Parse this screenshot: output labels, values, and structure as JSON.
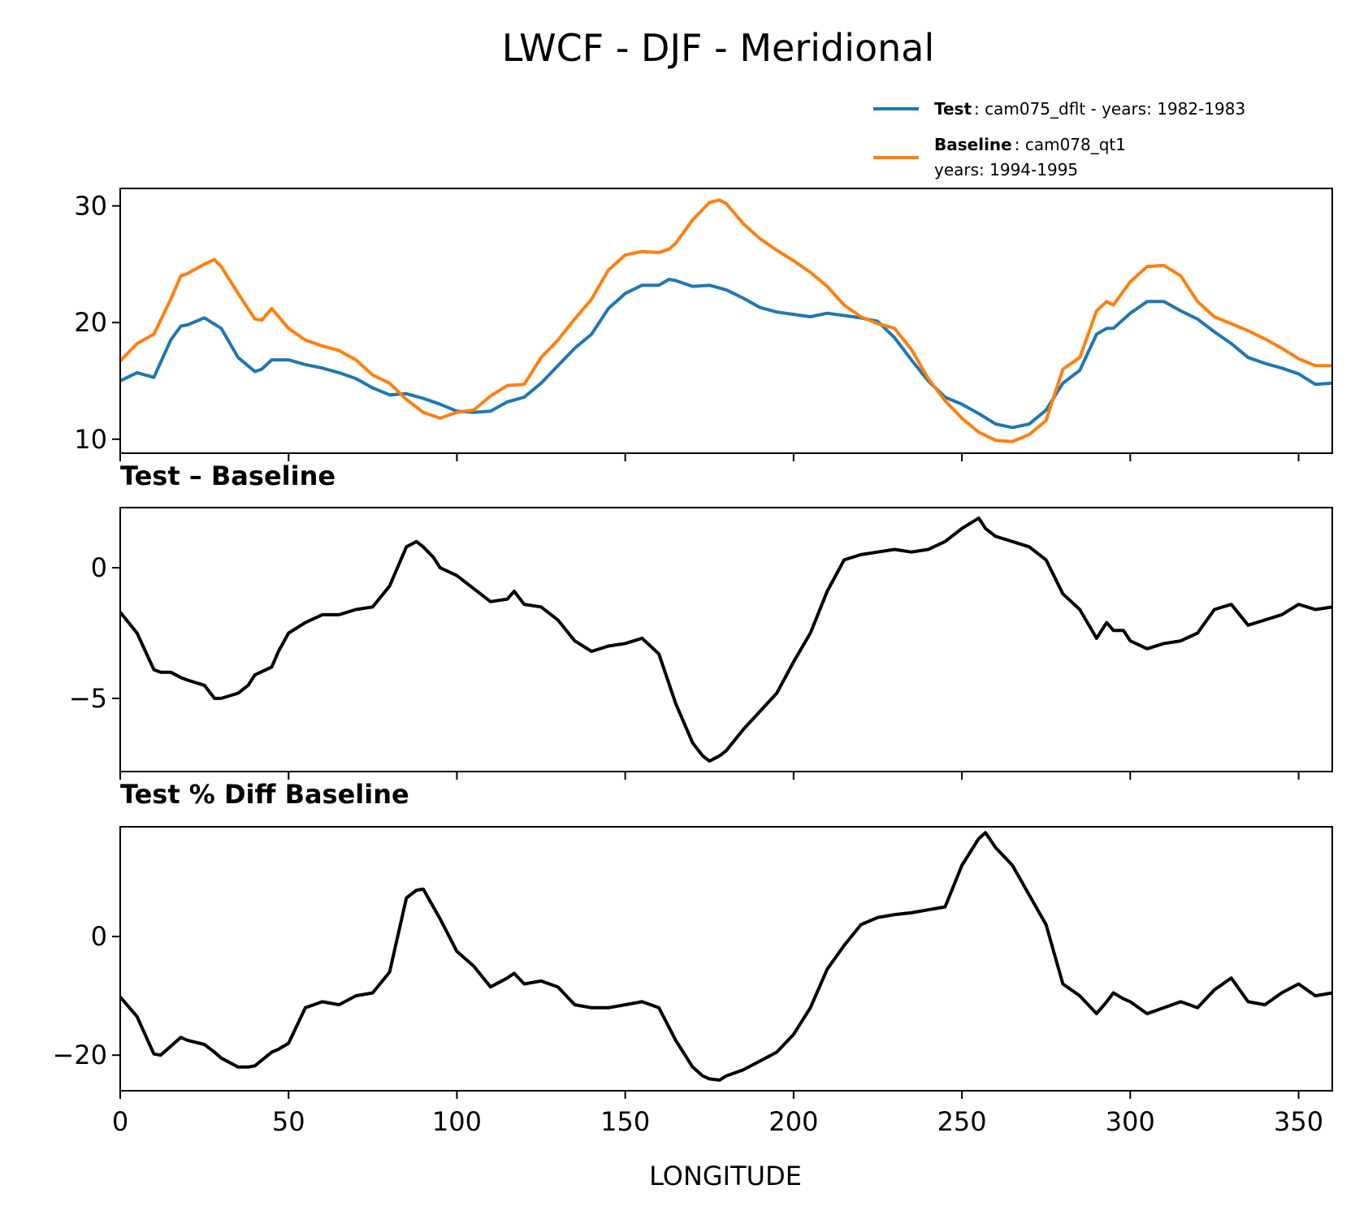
{
  "chart_data": {
    "type": "line",
    "title": "LWCF - DJF - Meridional",
    "xlabel": "LONGITUDE",
    "xlim": [
      0,
      360
    ],
    "xticks": [
      0,
      50,
      100,
      150,
      200,
      250,
      300,
      350
    ],
    "xtick_labels": [
      "0",
      "50",
      "100",
      "150",
      "200",
      "250",
      "300",
      "350"
    ],
    "colors": {
      "test": "#1f77b4",
      "baseline": "#ff7f0e",
      "diff": "#000000"
    },
    "legend": {
      "placement": "top-right",
      "test_name": "Test",
      "test_text": ": cam075_dflt - years: 1982-1983",
      "baseline_name": "Baseline",
      "baseline_text": ": cam078_qt1",
      "baseline_years": "years: 1994-1995"
    },
    "panels": [
      {
        "name": "main",
        "title": "",
        "ylim": [
          8.8,
          31.5
        ],
        "yticks": [
          10,
          20,
          30
        ],
        "ytick_labels": [
          "10",
          "20",
          "30"
        ],
        "series": [
          {
            "name": "Test",
            "color": "#1f77b4",
            "x": [
              0,
              5,
              10,
              15,
              18,
              20,
              25,
              30,
              35,
              40,
              42,
              45,
              50,
              55,
              60,
              65,
              70,
              75,
              80,
              85,
              90,
              95,
              100,
              105,
              110,
              115,
              120,
              125,
              130,
              135,
              140,
              145,
              150,
              155,
              160,
              163,
              165,
              170,
              175,
              180,
              185,
              190,
              195,
              200,
              205,
              210,
              215,
              220,
              225,
              230,
              235,
              240,
              245,
              250,
              255,
              260,
              265,
              270,
              275,
              280,
              285,
              290,
              293,
              295,
              300,
              305,
              310,
              315,
              320,
              325,
              330,
              335,
              340,
              345,
              350,
              355,
              360
            ],
            "values": [
              15.0,
              15.7,
              15.3,
              18.5,
              19.7,
              19.8,
              20.4,
              19.5,
              17.0,
              15.8,
              16.0,
              16.8,
              16.8,
              16.4,
              16.1,
              15.7,
              15.2,
              14.4,
              13.8,
              13.9,
              13.5,
              13.0,
              12.4,
              12.3,
              12.4,
              13.2,
              13.6,
              14.8,
              16.3,
              17.8,
              19.0,
              21.2,
              22.5,
              23.2,
              23.2,
              23.7,
              23.6,
              23.1,
              23.2,
              22.8,
              22.1,
              21.3,
              20.9,
              20.7,
              20.5,
              20.8,
              20.6,
              20.4,
              20.1,
              18.7,
              16.8,
              15.0,
              13.6,
              13.0,
              12.2,
              11.3,
              11.0,
              11.3,
              12.5,
              14.8,
              15.9,
              19.0,
              19.5,
              19.5,
              20.8,
              21.8,
              21.8,
              21.0,
              20.3,
              19.2,
              18.2,
              17.0,
              16.5,
              16.1,
              15.6,
              14.7,
              14.8
            ]
          },
          {
            "name": "Baseline",
            "color": "#ff7f0e",
            "x": [
              0,
              5,
              10,
              15,
              18,
              20,
              25,
              28,
              30,
              35,
              40,
              42,
              45,
              50,
              55,
              60,
              65,
              70,
              75,
              80,
              85,
              90,
              95,
              100,
              105,
              110,
              115,
              120,
              125,
              130,
              135,
              140,
              145,
              150,
              155,
              160,
              163,
              165,
              170,
              175,
              178,
              180,
              185,
              190,
              195,
              200,
              205,
              210,
              215,
              220,
              225,
              230,
              235,
              240,
              245,
              250,
              255,
              260,
              265,
              270,
              275,
              280,
              285,
              290,
              293,
              295,
              300,
              305,
              310,
              315,
              320,
              325,
              330,
              335,
              340,
              345,
              350,
              355,
              360
            ],
            "values": [
              16.7,
              18.2,
              19.0,
              22.0,
              24.0,
              24.2,
              25.0,
              25.4,
              24.8,
              22.5,
              20.3,
              20.2,
              21.2,
              19.5,
              18.5,
              18.0,
              17.6,
              16.8,
              15.5,
              14.8,
              13.4,
              12.3,
              11.8,
              12.3,
              12.5,
              13.7,
              14.6,
              14.7,
              17.0,
              18.5,
              20.3,
              22.0,
              24.5,
              25.8,
              26.1,
              26.0,
              26.3,
              26.8,
              28.8,
              30.3,
              30.5,
              30.2,
              28.5,
              27.2,
              26.2,
              25.3,
              24.3,
              23.1,
              21.5,
              20.5,
              19.9,
              19.5,
              17.7,
              15.2,
              13.3,
              11.8,
              10.6,
              9.9,
              9.8,
              10.4,
              11.6,
              16.0,
              17.0,
              21.0,
              21.8,
              21.5,
              23.5,
              24.8,
              24.9,
              24.0,
              21.8,
              20.5,
              19.9,
              19.3,
              18.6,
              17.8,
              16.9,
              16.3,
              16.3
            ]
          }
        ]
      },
      {
        "name": "diff",
        "title": "Test – Baseline",
        "ylim": [
          -7.8,
          2.3
        ],
        "yticks": [
          -5,
          0
        ],
        "ytick_labels": [
          "−5",
          "0"
        ],
        "series": [
          {
            "name": "Test – Baseline",
            "color": "#000000",
            "x": [
              0,
              5,
              10,
              12,
              15,
              18,
              20,
              25,
              28,
              30,
              35,
              38,
              40,
              45,
              47,
              50,
              55,
              60,
              65,
              70,
              75,
              80,
              85,
              88,
              90,
              93,
              95,
              100,
              105,
              110,
              115,
              117,
              120,
              125,
              130,
              135,
              140,
              145,
              150,
              155,
              160,
              165,
              170,
              173,
              175,
              178,
              180,
              185,
              190,
              195,
              200,
              205,
              210,
              215,
              220,
              225,
              230,
              235,
              240,
              245,
              250,
              255,
              257,
              260,
              265,
              270,
              275,
              280,
              285,
              290,
              293,
              295,
              298,
              300,
              305,
              310,
              315,
              320,
              325,
              330,
              335,
              340,
              345,
              350,
              355,
              360
            ],
            "values": [
              -1.7,
              -2.5,
              -3.9,
              -4.0,
              -4.0,
              -4.2,
              -4.3,
              -4.5,
              -5.0,
              -5.0,
              -4.8,
              -4.5,
              -4.1,
              -3.8,
              -3.2,
              -2.5,
              -2.1,
              -1.8,
              -1.8,
              -1.6,
              -1.5,
              -0.7,
              0.8,
              1.0,
              0.8,
              0.4,
              0.0,
              -0.3,
              -0.8,
              -1.3,
              -1.2,
              -0.9,
              -1.4,
              -1.5,
              -2.0,
              -2.8,
              -3.2,
              -3.0,
              -2.9,
              -2.7,
              -3.3,
              -5.2,
              -6.7,
              -7.2,
              -7.4,
              -7.2,
              -7.0,
              -6.2,
              -5.5,
              -4.8,
              -3.6,
              -2.5,
              -0.9,
              0.3,
              0.5,
              0.6,
              0.7,
              0.6,
              0.7,
              1.0,
              1.5,
              1.9,
              1.5,
              1.2,
              1.0,
              0.8,
              0.3,
              -1.0,
              -1.6,
              -2.7,
              -2.1,
              -2.4,
              -2.4,
              -2.8,
              -3.1,
              -2.9,
              -2.8,
              -2.5,
              -1.6,
              -1.4,
              -2.2,
              -2.0,
              -1.8,
              -1.4,
              -1.6,
              -1.5
            ]
          }
        ]
      },
      {
        "name": "pctdiff",
        "title": "Test % Diff Baseline",
        "ylim": [
          -26,
          18.5
        ],
        "yticks": [
          -20,
          0
        ],
        "ytick_labels": [
          "−20",
          "0"
        ],
        "series": [
          {
            "name": "Test % Diff Baseline",
            "color": "#000000",
            "x": [
              0,
              5,
              10,
              12,
              15,
              18,
              20,
              25,
              28,
              30,
              35,
              38,
              40,
              45,
              47,
              50,
              55,
              60,
              65,
              70,
              75,
              80,
              85,
              88,
              90,
              93,
              95,
              100,
              105,
              110,
              115,
              117,
              120,
              125,
              130,
              135,
              140,
              145,
              150,
              155,
              160,
              165,
              170,
              173,
              175,
              178,
              180,
              185,
              190,
              195,
              200,
              205,
              210,
              215,
              220,
              225,
              230,
              235,
              240,
              245,
              250,
              255,
              257,
              260,
              265,
              270,
              275,
              280,
              285,
              290,
              293,
              295,
              298,
              300,
              305,
              310,
              315,
              320,
              325,
              330,
              335,
              340,
              345,
              350,
              355,
              360
            ],
            "values": [
              -10.2,
              -13.5,
              -19.8,
              -20.0,
              -18.5,
              -17.0,
              -17.5,
              -18.2,
              -19.5,
              -20.5,
              -22.0,
              -22.0,
              -21.8,
              -19.5,
              -19.0,
              -18.0,
              -12.0,
              -11.0,
              -11.5,
              -10.0,
              -9.5,
              -6.0,
              6.5,
              7.8,
              8.0,
              5.0,
              3.0,
              -2.5,
              -5.0,
              -8.5,
              -7.0,
              -6.2,
              -8.0,
              -7.5,
              -8.5,
              -11.5,
              -12.0,
              -12.0,
              -11.5,
              -11.0,
              -12.0,
              -17.5,
              -22.0,
              -23.5,
              -24.0,
              -24.2,
              -23.5,
              -22.5,
              -21.0,
              -19.5,
              -16.5,
              -12.0,
              -5.5,
              -1.5,
              2.0,
              3.2,
              3.7,
              4.0,
              4.5,
              5.0,
              12.0,
              16.5,
              17.5,
              15.0,
              12.0,
              7.0,
              2.0,
              -8.0,
              -10.0,
              -13.0,
              -11.0,
              -9.5,
              -10.5,
              -11.0,
              -13.0,
              -12.0,
              -11.0,
              -12.0,
              -9.0,
              -7.0,
              -11.0,
              -11.5,
              -9.5,
              -8.0,
              -10.0,
              -9.5
            ]
          }
        ]
      }
    ]
  }
}
